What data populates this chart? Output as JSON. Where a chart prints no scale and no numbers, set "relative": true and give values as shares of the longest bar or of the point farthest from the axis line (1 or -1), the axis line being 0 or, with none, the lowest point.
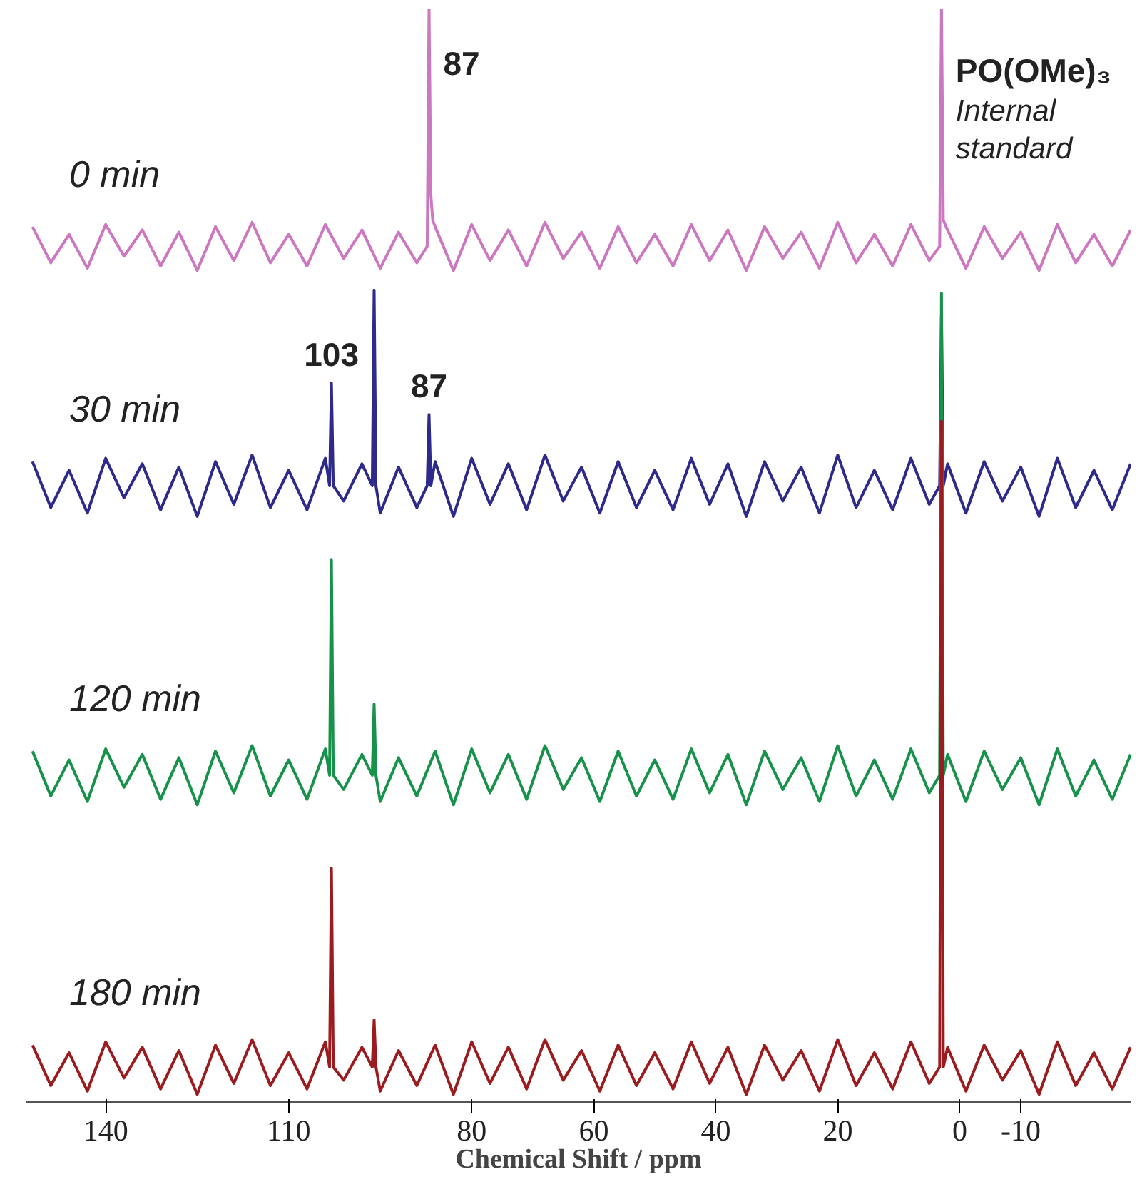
{
  "chart_data": {
    "type": "line",
    "relative": true,
    "grid": false,
    "legend": false,
    "xlim": [
      153,
      -28
    ],
    "xticks": [
      140,
      110,
      80,
      60,
      40,
      20,
      0,
      -10
    ],
    "xlabel": "Chemical Shift / ppm",
    "annotations": [
      {
        "text": "87",
        "x": 87,
        "y": 1
      },
      {
        "text": "PO(OMe)₃",
        "x": 3,
        "y": 1
      },
      {
        "text": "Internal\nstandard",
        "x": 3,
        "y": 1
      },
      {
        "text": "103",
        "x": 103,
        "y": 0.658
      },
      {
        "text": "87",
        "x": 87,
        "y": 0.629
      }
    ],
    "series": [
      {
        "name": "0 min",
        "color": "#cc77c0",
        "x": [
          152,
          149,
          146,
          143,
          140,
          137,
          134,
          131,
          128,
          125,
          122,
          119,
          116,
          113,
          110,
          107,
          104,
          101,
          98,
          95,
          92,
          89,
          87.3,
          87,
          86.7,
          86.4,
          86,
          83,
          80,
          77,
          74,
          71,
          68,
          65,
          62,
          59,
          56,
          53,
          50,
          47,
          44,
          41,
          38,
          35,
          32,
          29,
          26,
          23,
          20,
          17,
          14,
          11,
          8,
          5,
          3.3,
          3,
          2.7,
          2,
          -1,
          -4,
          -7,
          -10,
          -13,
          -16,
          -19,
          -22,
          -25,
          -28
        ],
        "values": [
          0.801,
          0.768,
          0.794,
          0.763,
          0.803,
          0.774,
          0.798,
          0.765,
          0.796,
          0.761,
          0.801,
          0.77,
          0.805,
          0.768,
          0.794,
          0.765,
          0.803,
          0.772,
          0.798,
          0.763,
          0.796,
          0.768,
          0.783,
          1,
          0.83,
          0.807,
          0.801,
          0.761,
          0.803,
          0.77,
          0.798,
          0.765,
          0.805,
          0.772,
          0.796,
          0.763,
          0.801,
          0.768,
          0.794,
          0.765,
          0.803,
          0.77,
          0.798,
          0.761,
          0.801,
          0.772,
          0.796,
          0.763,
          0.805,
          0.768,
          0.794,
          0.765,
          0.803,
          0.77,
          0.783,
          1,
          0.807,
          0.798,
          0.763,
          0.801,
          0.772,
          0.796,
          0.761,
          0.803,
          0.768,
          0.794,
          0.765,
          0.798
        ]
      },
      {
        "name": "30 min",
        "color": "#2e2a8c",
        "x": [
          152,
          149,
          146,
          143,
          140,
          137,
          134,
          131,
          128,
          125,
          122,
          119,
          116,
          113,
          110,
          107,
          104,
          103.3,
          103,
          102.7,
          101,
          98,
          96.3,
          96,
          95.7,
          95,
          92,
          89,
          87.3,
          87,
          86.7,
          86,
          83,
          80,
          77,
          74,
          71,
          68,
          65,
          62,
          59,
          56,
          53,
          50,
          47,
          44,
          41,
          38,
          35,
          32,
          29,
          26,
          23,
          20,
          17,
          14,
          11,
          8,
          5,
          3.3,
          3,
          2.7,
          2,
          -1,
          -4,
          -7,
          -10,
          -13,
          -16,
          -19,
          -22,
          -25,
          -28
        ],
        "values": [
          0.586,
          0.544,
          0.578,
          0.539,
          0.589,
          0.553,
          0.584,
          0.542,
          0.581,
          0.536,
          0.586,
          0.547,
          0.592,
          0.544,
          0.578,
          0.542,
          0.589,
          0.564,
          0.658,
          0.564,
          0.55,
          0.584,
          0.564,
          0.743,
          0.564,
          0.539,
          0.581,
          0.544,
          0.564,
          0.629,
          0.564,
          0.586,
          0.536,
          0.589,
          0.547,
          0.584,
          0.542,
          0.592,
          0.55,
          0.581,
          0.539,
          0.586,
          0.544,
          0.578,
          0.542,
          0.589,
          0.547,
          0.584,
          0.536,
          0.586,
          0.55,
          0.581,
          0.539,
          0.592,
          0.544,
          0.578,
          0.542,
          0.589,
          0.547,
          0.564,
          0.72,
          0.564,
          0.584,
          0.539,
          0.586,
          0.55,
          0.581,
          0.536,
          0.589,
          0.544,
          0.578,
          0.542,
          0.584
        ]
      },
      {
        "name": "120 min",
        "color": "#17924a",
        "x": [
          152,
          149,
          146,
          143,
          140,
          137,
          134,
          131,
          128,
          125,
          122,
          119,
          116,
          113,
          110,
          107,
          104,
          103.3,
          103,
          102.7,
          101,
          98,
          96.3,
          96,
          95.7,
          95,
          92,
          89,
          86,
          83,
          80,
          77,
          74,
          71,
          68,
          65,
          62,
          59,
          56,
          53,
          50,
          47,
          44,
          41,
          38,
          35,
          32,
          29,
          26,
          23,
          20,
          17,
          14,
          11,
          8,
          5,
          3.3,
          3,
          2.7,
          2,
          -1,
          -4,
          -7,
          -10,
          -13,
          -16,
          -19,
          -22,
          -25,
          -28
        ],
        "values": [
          0.321,
          0.28,
          0.313,
          0.275,
          0.323,
          0.288,
          0.318,
          0.277,
          0.315,
          0.272,
          0.321,
          0.283,
          0.326,
          0.28,
          0.313,
          0.277,
          0.323,
          0.299,
          0.496,
          0.299,
          0.286,
          0.318,
          0.299,
          0.364,
          0.299,
          0.275,
          0.315,
          0.28,
          0.321,
          0.272,
          0.323,
          0.283,
          0.318,
          0.277,
          0.326,
          0.286,
          0.315,
          0.275,
          0.321,
          0.28,
          0.313,
          0.277,
          0.323,
          0.283,
          0.318,
          0.272,
          0.321,
          0.286,
          0.315,
          0.275,
          0.326,
          0.28,
          0.313,
          0.277,
          0.323,
          0.283,
          0.299,
          0.74,
          0.299,
          0.318,
          0.275,
          0.321,
          0.286,
          0.315,
          0.272,
          0.323,
          0.28,
          0.313,
          0.277,
          0.318
        ]
      },
      {
        "name": "180 min",
        "color": "#9b1b1e",
        "x": [
          152,
          149,
          146,
          143,
          140,
          137,
          134,
          131,
          128,
          125,
          122,
          119,
          116,
          113,
          110,
          107,
          104,
          103.3,
          103,
          102.7,
          101,
          98,
          96.3,
          96,
          95.7,
          95,
          92,
          89,
          86,
          83,
          80,
          77,
          74,
          71,
          68,
          65,
          62,
          59,
          56,
          53,
          50,
          47,
          44,
          41,
          38,
          35,
          32,
          29,
          26,
          23,
          20,
          17,
          14,
          11,
          8,
          5,
          3.3,
          3,
          2.7,
          2,
          -1,
          -4,
          -7,
          -10,
          -13,
          -16,
          -19,
          -22,
          -25,
          -28
        ],
        "values": [
          0.052,
          0.015,
          0.045,
          0.01,
          0.055,
          0.022,
          0.05,
          0.012,
          0.047,
          0.007,
          0.052,
          0.017,
          0.057,
          0.015,
          0.045,
          0.012,
          0.055,
          0.032,
          0.214,
          0.032,
          0.02,
          0.05,
          0.032,
          0.075,
          0.032,
          0.01,
          0.047,
          0.015,
          0.052,
          0.007,
          0.055,
          0.017,
          0.05,
          0.012,
          0.057,
          0.02,
          0.047,
          0.01,
          0.052,
          0.015,
          0.045,
          0.012,
          0.055,
          0.017,
          0.05,
          0.007,
          0.052,
          0.02,
          0.047,
          0.01,
          0.057,
          0.015,
          0.045,
          0.012,
          0.055,
          0.017,
          0.032,
          0.623,
          0.032,
          0.05,
          0.01,
          0.052,
          0.02,
          0.047,
          0.007,
          0.055,
          0.015,
          0.045,
          0.012,
          0.05
        ]
      }
    ]
  }
}
